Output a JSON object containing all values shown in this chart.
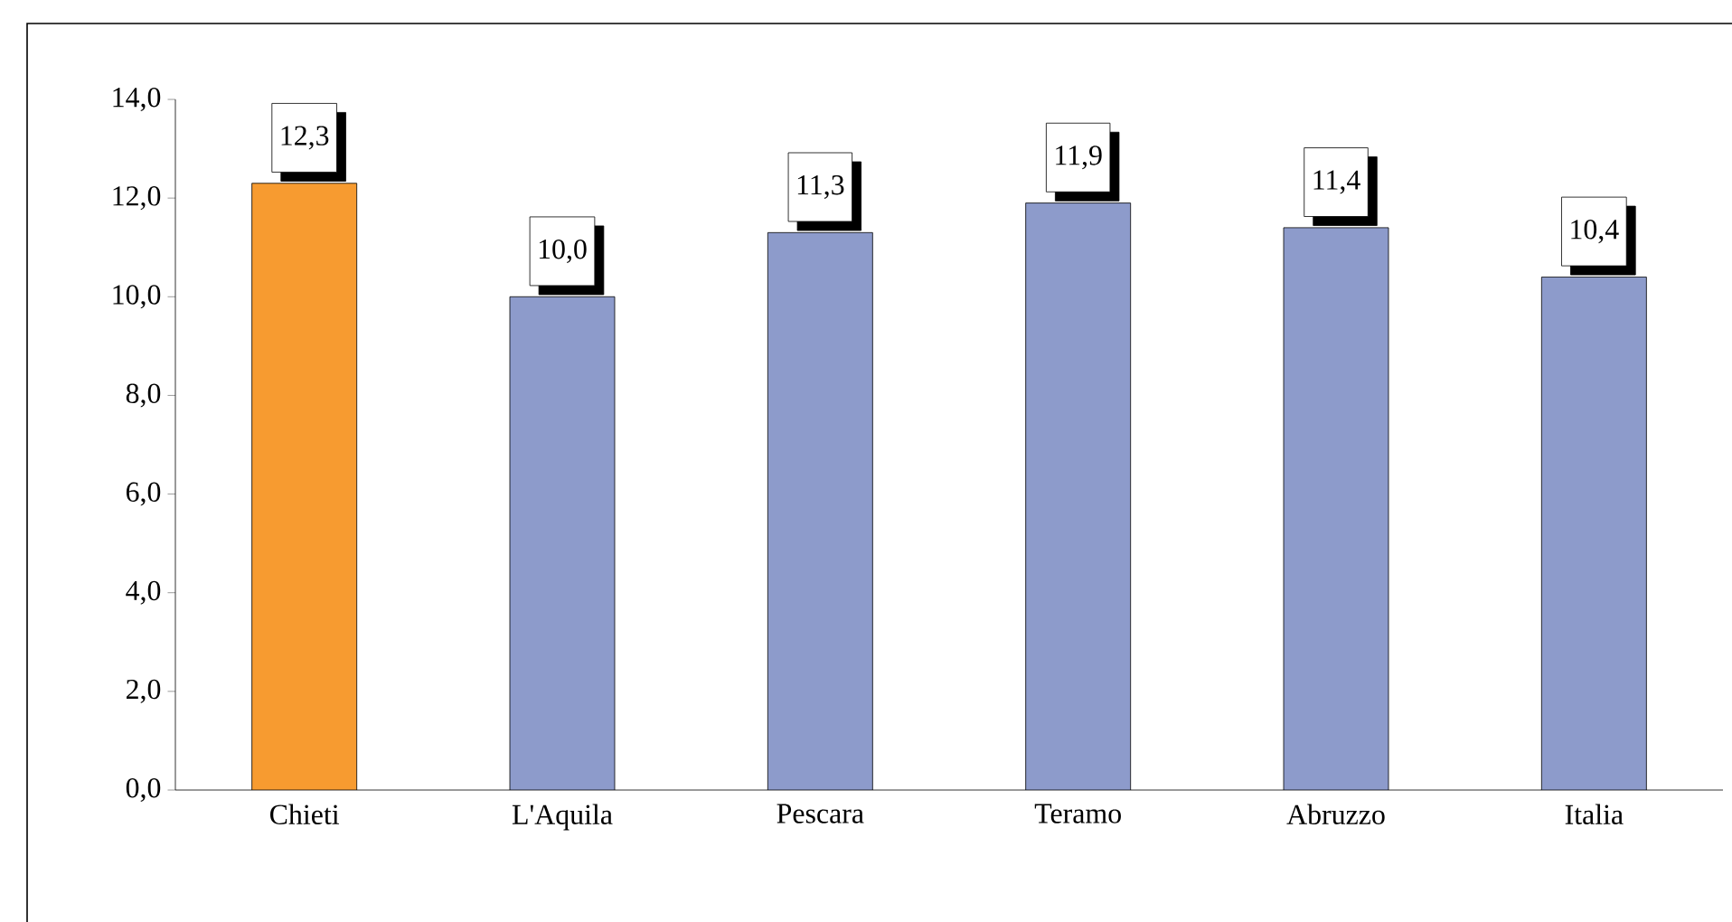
{
  "chart_data": {
    "type": "bar",
    "categories": [
      "Chieti",
      "L'Aquila",
      "Pescara",
      "Teramo",
      "Abruzzo",
      "Italia"
    ],
    "values": [
      12.3,
      10.0,
      11.3,
      11.9,
      11.4,
      10.4
    ],
    "value_labels": [
      "12,3",
      "10,0",
      "11,3",
      "11,9",
      "11,4",
      "10,4"
    ],
    "colors": [
      "#f79b30",
      "#8d9bcb",
      "#8d9bcb",
      "#8d9bcb",
      "#8d9bcb",
      "#8d9bcb"
    ],
    "ylim": [
      0,
      14
    ],
    "yticks": [
      {
        "value": 0,
        "label": "0,0"
      },
      {
        "value": 2,
        "label": "2,0"
      },
      {
        "value": 4,
        "label": "4,0"
      },
      {
        "value": 6,
        "label": "6,0"
      },
      {
        "value": 8,
        "label": "8,0"
      },
      {
        "value": 10,
        "label": "10,0"
      },
      {
        "value": 12,
        "label": "12,0"
      },
      {
        "value": 14,
        "label": "14,0"
      }
    ],
    "grid": false
  }
}
